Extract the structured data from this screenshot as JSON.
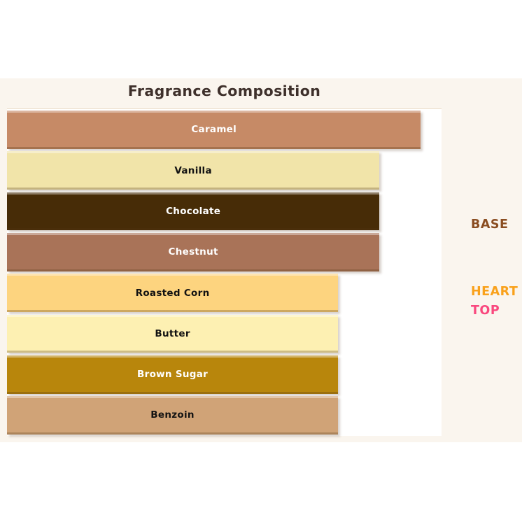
{
  "page": {
    "background": "#FFFFFF",
    "figure_background": "#FAF5EE",
    "plot_background": "#FFFFFF"
  },
  "chart_data": {
    "type": "bar",
    "orientation": "horizontal",
    "title": "Fragrance Composition",
    "title_color": "#3E302B",
    "categories": [
      "Caramel",
      "Vanilla",
      "Chocolate",
      "Chestnut",
      "Roasted Corn",
      "Butter",
      "Brown Sugar",
      "Benzoin"
    ],
    "values": [
      20,
      18,
      18,
      18,
      16,
      16,
      16,
      16
    ],
    "xlim": [
      0,
      21
    ],
    "grid": false,
    "legend": "none",
    "axis_ticks": "none",
    "bars": [
      {
        "label": "Caramel",
        "value": 20,
        "color": "#C68A66",
        "text_color": "#FFFFFF"
      },
      {
        "label": "Vanilla",
        "value": 18,
        "color": "#F1E4A9",
        "text_color": "#121212"
      },
      {
        "label": "Chocolate",
        "value": 18,
        "color": "#472C07",
        "text_color": "#FFFFFF"
      },
      {
        "label": "Chestnut",
        "value": 18,
        "color": "#A97358",
        "text_color": "#FFFFFF"
      },
      {
        "label": "Roasted Corn",
        "value": 16,
        "color": "#FDD47F",
        "text_color": "#121212"
      },
      {
        "label": "Butter",
        "value": 16,
        "color": "#FDF0B2",
        "text_color": "#121212"
      },
      {
        "label": "Brown Sugar",
        "value": 16,
        "color": "#B8860C",
        "text_color": "#FFFFFF"
      },
      {
        "label": "Benzoin",
        "value": 16,
        "color": "#D0A377",
        "text_color": "#121212"
      }
    ]
  },
  "side_labels": [
    {
      "text": "BASE",
      "color": "#8A4D21",
      "y": 322
    },
    {
      "text": "HEART",
      "color": "#F9A11B",
      "y": 418
    },
    {
      "text": "TOP",
      "color": "#F9487E",
      "y": 445
    }
  ]
}
